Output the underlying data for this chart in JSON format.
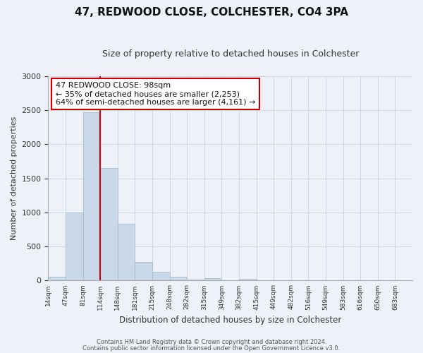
{
  "title": "47, REDWOOD CLOSE, COLCHESTER, CO4 3PA",
  "subtitle": "Size of property relative to detached houses in Colchester",
  "xlabel": "Distribution of detached houses by size in Colchester",
  "ylabel": "Number of detached properties",
  "bar_labels": [
    "14sqm",
    "47sqm",
    "81sqm",
    "114sqm",
    "148sqm",
    "181sqm",
    "215sqm",
    "248sqm",
    "282sqm",
    "315sqm",
    "349sqm",
    "382sqm",
    "415sqm",
    "449sqm",
    "482sqm",
    "516sqm",
    "549sqm",
    "583sqm",
    "616sqm",
    "650sqm",
    "683sqm"
  ],
  "bar_values": [
    55,
    1000,
    2470,
    1650,
    830,
    270,
    130,
    55,
    10,
    40,
    0,
    30,
    0,
    0,
    0,
    0,
    0,
    0,
    0,
    0,
    0
  ],
  "bar_color": "#c8d8e8",
  "bar_edge_color": "#aabdd0",
  "vline_color": "#cc0000",
  "vline_index": 3,
  "annotation_box_text": "47 REDWOOD CLOSE: 98sqm\n← 35% of detached houses are smaller (2,253)\n64% of semi-detached houses are larger (4,161) →",
  "annotation_box_facecolor": "#ffffff",
  "annotation_box_edgecolor": "#cc0000",
  "ylim": [
    0,
    3000
  ],
  "yticks": [
    0,
    500,
    1000,
    1500,
    2000,
    2500,
    3000
  ],
  "grid_color": "#d0d8e8",
  "bg_color": "#eef2f8",
  "footer_line1": "Contains HM Land Registry data © Crown copyright and database right 2024.",
  "footer_line2": "Contains public sector information licensed under the Open Government Licence v3.0."
}
